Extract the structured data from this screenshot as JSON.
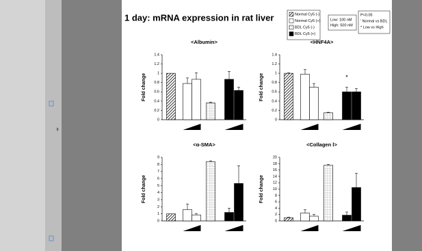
{
  "slide": {
    "title": "1 day: mRNA expression in rat liver",
    "legend": [
      {
        "label": "Normal Cy5 (-)",
        "fill": "hatch"
      },
      {
        "label": "Normal Cy5 (+)",
        "fill": "white"
      },
      {
        "label": "BDL Cy5 (-)",
        "fill": "dots"
      },
      {
        "label": "BDL Cy5 (+)",
        "fill": "black"
      }
    ],
    "conc": [
      "Low: 100 nM",
      "High: 500 nM"
    ],
    "stats": [
      "P<0.05",
      "' Normal vs BDL",
      "* Low vs High"
    ]
  },
  "chart_data": [
    {
      "type": "bar",
      "title": "<Albumin>",
      "y_label": "Fold change",
      "categories": [
        null,
        null,
        null,
        null,
        null,
        null
      ],
      "values": [
        1.0,
        0.78,
        0.87,
        0.36,
        0.87,
        0.63
      ],
      "errors": [
        null,
        0.12,
        0.14,
        0.02,
        0.17,
        0.07
      ],
      "colors": [
        "hatch",
        "white",
        "white",
        "dots",
        "black",
        "black"
      ],
      "ylim": [
        0,
        1.4
      ],
      "yticks": [
        0,
        0.2,
        0.4,
        0.6,
        0.8,
        1,
        1.2,
        1.4
      ],
      "grid": false
    },
    {
      "type": "bar",
      "title": "<HNF4A>",
      "y_label": "Fold change",
      "categories": [
        null,
        null,
        null,
        null,
        null,
        null
      ],
      "values": [
        1.0,
        0.98,
        0.7,
        0.15,
        0.6,
        0.6
      ],
      "errors": [
        0.01,
        0.1,
        0.08,
        0.01,
        0.1,
        0.07
      ],
      "colors": [
        "hatch",
        "white",
        "white",
        "dots",
        "black",
        "black"
      ],
      "annotation": "*",
      "ylim": [
        0,
        1.4
      ],
      "yticks": [
        0,
        0.2,
        0.4,
        0.6,
        0.8,
        1,
        1.2,
        1.4
      ],
      "grid": false
    },
    {
      "type": "bar",
      "title": "<α-SMA>",
      "y_label": "Fold change",
      "categories": [
        null,
        null,
        null,
        null,
        null,
        null
      ],
      "values": [
        1.0,
        1.6,
        0.85,
        8.4,
        1.2,
        5.3
      ],
      "errors": [
        null,
        0.8,
        0.2,
        0.1,
        0.6,
        2.5
      ],
      "colors": [
        "hatch",
        "white",
        "white",
        "dots",
        "black",
        "black"
      ],
      "ylim": [
        0,
        9
      ],
      "yticks": [
        0,
        1,
        2,
        3,
        4,
        5,
        6,
        7,
        8,
        9
      ],
      "grid": false
    },
    {
      "type": "bar",
      "title": "<Collagen Ⅰ>",
      "y_label": "Fold change",
      "categories": [
        null,
        null,
        null,
        null,
        null,
        null
      ],
      "values": [
        1.0,
        2.5,
        1.5,
        17.5,
        1.8,
        10.5
      ],
      "errors": [
        0.2,
        1.0,
        0.6,
        0.2,
        1.0,
        4.5
      ],
      "colors": [
        "hatch",
        "white",
        "white",
        "dots",
        "black",
        "black"
      ],
      "ylim": [
        0,
        20
      ],
      "yticks": [
        0,
        2,
        4,
        6,
        8,
        10,
        12,
        14,
        16,
        18,
        20
      ],
      "grid": false
    }
  ]
}
